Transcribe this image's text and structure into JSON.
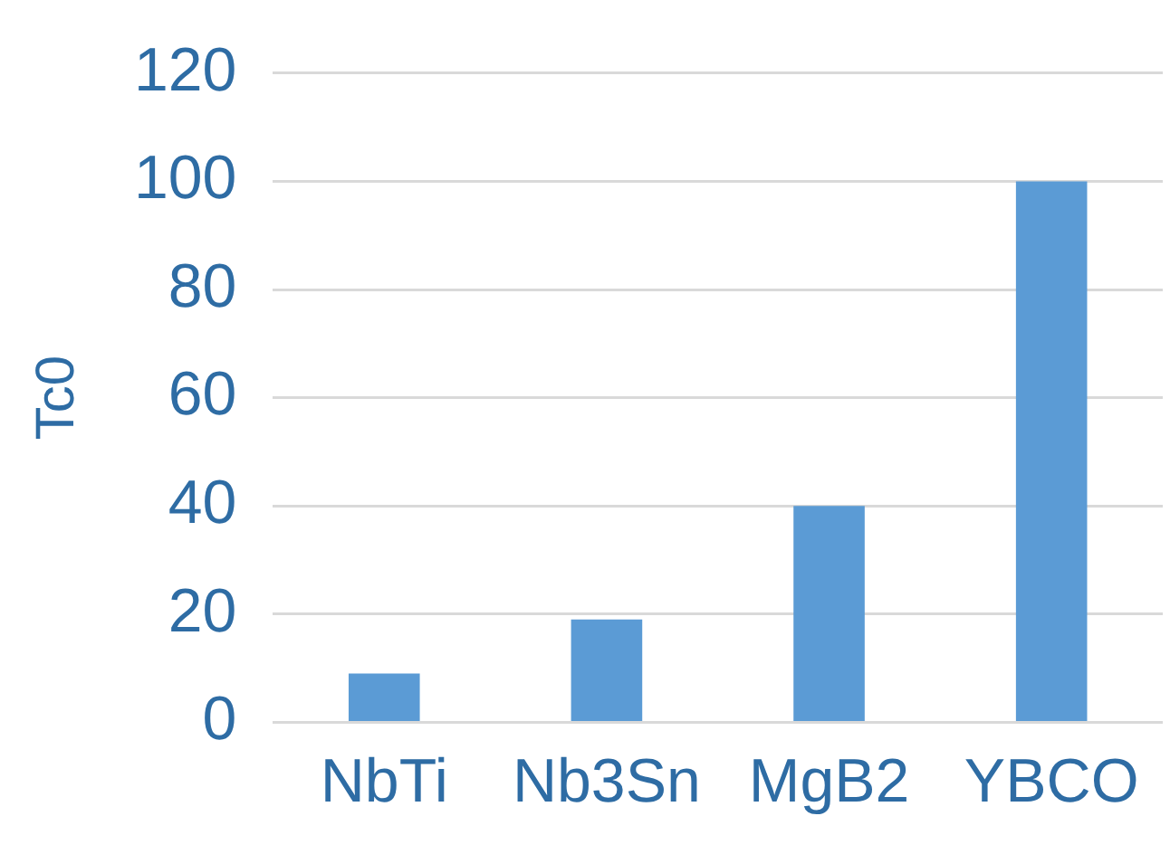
{
  "chart_data": {
    "type": "bar",
    "ylabel": "Tc0",
    "categories": [
      "NbTi",
      "Nb3Sn",
      "MgB2",
      "YBCO"
    ],
    "values": [
      9,
      19,
      40,
      100
    ],
    "color": "#5b9bd5",
    "ylim": [
      0,
      120
    ],
    "yticks": [
      0,
      20,
      40,
      60,
      80,
      100,
      120
    ],
    "grid": "y",
    "legend": false
  }
}
